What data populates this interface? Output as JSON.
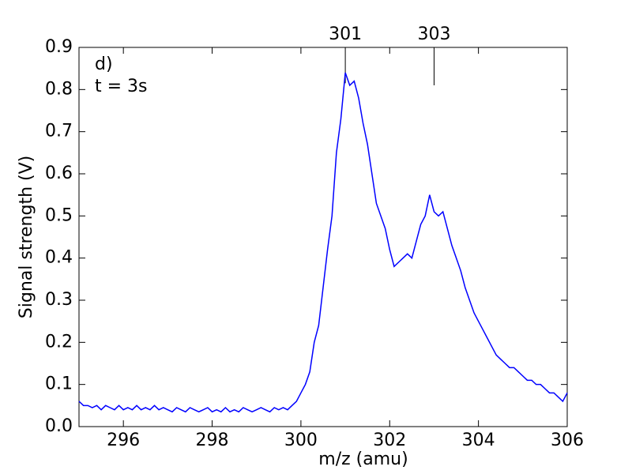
{
  "chart_data": {
    "type": "line",
    "xlabel": "m/z (amu)",
    "ylabel": "Signal strength (V)",
    "panel_label": "d)",
    "time_label": "t = 3s",
    "x": [
      295,
      295.1,
      295.2,
      295.3,
      295.4,
      295.5,
      295.6,
      295.7,
      295.8,
      295.9,
      296,
      296.1,
      296.2,
      296.3,
      296.4,
      296.5,
      296.6,
      296.7,
      296.8,
      296.9,
      297,
      297.1,
      297.2,
      297.3,
      297.4,
      297.5,
      297.6,
      297.7,
      297.8,
      297.9,
      298,
      298.1,
      298.2,
      298.3,
      298.4,
      298.5,
      298.6,
      298.7,
      298.8,
      298.9,
      299,
      299.1,
      299.2,
      299.3,
      299.4,
      299.5,
      299.6,
      299.7,
      299.8,
      299.9,
      300,
      300.1,
      300.2,
      300.3,
      300.4,
      300.5,
      300.6,
      300.7,
      300.8,
      300.9,
      301,
      301.1,
      301.2,
      301.3,
      301.4,
      301.5,
      301.6,
      301.7,
      301.8,
      301.9,
      302,
      302.1,
      302.2,
      302.3,
      302.4,
      302.5,
      302.6,
      302.7,
      302.8,
      302.9,
      303,
      303.1,
      303.2,
      303.3,
      303.4,
      303.5,
      303.6,
      303.7,
      303.8,
      303.9,
      304,
      304.1,
      304.2,
      304.3,
      304.4,
      304.5,
      304.6,
      304.7,
      304.8,
      304.9,
      305,
      305.1,
      305.2,
      305.3,
      305.4,
      305.5,
      305.6,
      305.7,
      305.8,
      305.9,
      306
    ],
    "series": [
      {
        "color": "#0000ff",
        "values": [
          0.06,
          0.05,
          0.05,
          0.045,
          0.05,
          0.04,
          0.05,
          0.045,
          0.04,
          0.05,
          0.04,
          0.045,
          0.04,
          0.05,
          0.04,
          0.045,
          0.04,
          0.05,
          0.04,
          0.045,
          0.04,
          0.035,
          0.045,
          0.04,
          0.035,
          0.045,
          0.04,
          0.035,
          0.04,
          0.045,
          0.035,
          0.04,
          0.035,
          0.045,
          0.035,
          0.04,
          0.035,
          0.045,
          0.04,
          0.035,
          0.04,
          0.045,
          0.04,
          0.035,
          0.045,
          0.04,
          0.045,
          0.04,
          0.05,
          0.06,
          0.08,
          0.1,
          0.13,
          0.2,
          0.24,
          0.33,
          0.42,
          0.5,
          0.65,
          0.73,
          0.84,
          0.81,
          0.82,
          0.78,
          0.72,
          0.67,
          0.6,
          0.53,
          0.5,
          0.47,
          0.42,
          0.38,
          0.39,
          0.4,
          0.41,
          0.4,
          0.44,
          0.48,
          0.5,
          0.55,
          0.51,
          0.5,
          0.51,
          0.47,
          0.43,
          0.4,
          0.37,
          0.33,
          0.3,
          0.27,
          0.25,
          0.23,
          0.21,
          0.19,
          0.17,
          0.16,
          0.15,
          0.14,
          0.14,
          0.13,
          0.12,
          0.11,
          0.11,
          0.1,
          0.1,
          0.09,
          0.08,
          0.08,
          0.07,
          0.06,
          0.08
        ]
      }
    ],
    "markers": [
      {
        "x": 301,
        "label": "301",
        "y": 0.815
      },
      {
        "x": 303,
        "label": "303",
        "y": 0.81
      }
    ],
    "xlim": [
      295,
      306
    ],
    "xticks": [
      296,
      298,
      300,
      302,
      304,
      306
    ],
    "ylim": [
      0,
      0.9
    ],
    "yticks": [
      {
        "value": 0,
        "label": "0.0"
      },
      0.1,
      0.2,
      0.3,
      0.4,
      0.5,
      0.6,
      0.7,
      0.8,
      0.9
    ]
  }
}
